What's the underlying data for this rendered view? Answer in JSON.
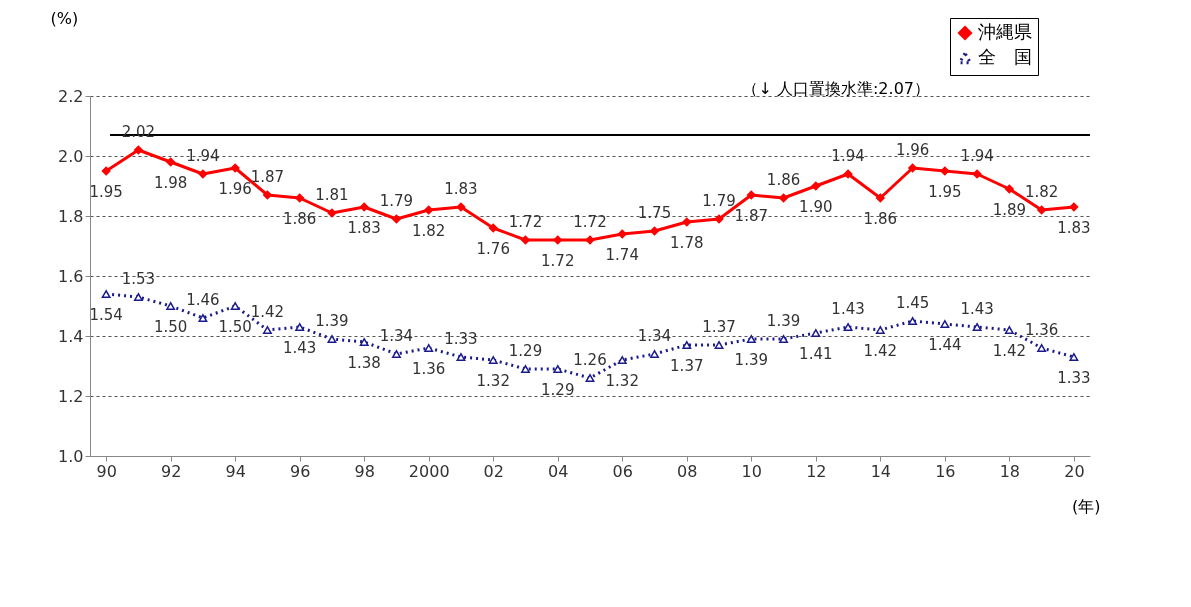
{
  "chart_data": {
    "type": "line",
    "ylabel": "(%)",
    "xlabel": "(年)",
    "x": [
      1990,
      1991,
      1992,
      1993,
      1994,
      1995,
      1996,
      1997,
      1998,
      1999,
      2000,
      2001,
      2002,
      2003,
      2004,
      2005,
      2006,
      2007,
      2008,
      2009,
      2010,
      2011,
      2012,
      2013,
      2014,
      2015,
      2016,
      2017,
      2018,
      2019,
      2020
    ],
    "series": [
      {
        "name": "沖縄県",
        "color": "#ff0000",
        "marker": "diamond",
        "line_style": "solid",
        "value_labels": [
          "1.95",
          "2.02",
          "1.98",
          "1.94",
          "1.96",
          "1.87",
          "1.86",
          "1.81",
          "1.83",
          "1.79",
          "1.82",
          "1.83",
          "1.76",
          "1.72",
          "1.72",
          "1.72",
          "1.74",
          "1.75",
          "1.78",
          "1.79",
          "1.87",
          "1.86",
          "1.90",
          "1.94",
          "1.86",
          "1.96",
          "1.95",
          "1.94",
          "1.89",
          "1.82",
          "1.83"
        ],
        "values": [
          1.95,
          2.02,
          1.98,
          1.94,
          1.96,
          1.87,
          1.86,
          1.81,
          1.83,
          1.79,
          1.82,
          1.83,
          1.76,
          1.72,
          1.72,
          1.72,
          1.74,
          1.75,
          1.78,
          1.79,
          1.87,
          1.86,
          1.9,
          1.94,
          1.86,
          1.96,
          1.95,
          1.94,
          1.89,
          1.82,
          1.83
        ]
      },
      {
        "name": "全　国",
        "color": "#1a1a8c",
        "marker": "triangle",
        "line_style": "dotted",
        "value_labels": [
          "1.54",
          "1.53",
          "1.50",
          "1.46",
          "1.50",
          "1.42",
          "1.43",
          "1.39",
          "1.38",
          "1.34",
          "1.36",
          "1.33",
          "1.32",
          "1.29",
          "1.29",
          "1.26",
          "1.32",
          "1.34",
          "1.37",
          "1.37",
          "1.39",
          "1.39",
          "1.41",
          "1.43",
          "1.42",
          "1.45",
          "1.44",
          "1.43",
          "1.42",
          "1.36",
          "1.33"
        ],
        "values": [
          1.54,
          1.53,
          1.5,
          1.46,
          1.5,
          1.42,
          1.43,
          1.39,
          1.38,
          1.34,
          1.36,
          1.33,
          1.32,
          1.29,
          1.29,
          1.26,
          1.32,
          1.34,
          1.37,
          1.37,
          1.39,
          1.39,
          1.41,
          1.43,
          1.42,
          1.45,
          1.44,
          1.43,
          1.42,
          1.36,
          1.33
        ]
      }
    ],
    "xlim": [
      1989.5,
      2020.5
    ],
    "xticks": [
      {
        "value": 1990,
        "label": "90"
      },
      {
        "value": 1992,
        "label": "92"
      },
      {
        "value": 1994,
        "label": "94"
      },
      {
        "value": 1996,
        "label": "96"
      },
      {
        "value": 1998,
        "label": "98"
      },
      {
        "value": 2000,
        "label": "2000"
      },
      {
        "value": 2002,
        "label": "02"
      },
      {
        "value": 2004,
        "label": "04"
      },
      {
        "value": 2006,
        "label": "06"
      },
      {
        "value": 2008,
        "label": "08"
      },
      {
        "value": 2010,
        "label": "10"
      },
      {
        "value": 2012,
        "label": "12"
      },
      {
        "value": 2014,
        "label": "14"
      },
      {
        "value": 2016,
        "label": "16"
      },
      {
        "value": 2018,
        "label": "18"
      },
      {
        "value": 2020,
        "label": "20"
      }
    ],
    "ylim": [
      1.0,
      2.2
    ],
    "yticks": [
      {
        "value": 1.0,
        "label": "1.0"
      },
      {
        "value": 1.2,
        "label": "1.2"
      },
      {
        "value": 1.4,
        "label": "1.4"
      },
      {
        "value": 1.6,
        "label": "1.6"
      },
      {
        "value": 1.8,
        "label": "1.8"
      },
      {
        "value": 2.0,
        "label": "2.0"
      },
      {
        "value": 2.2,
        "label": "2.2"
      }
    ],
    "ref_lines": [
      {
        "axis": "y",
        "value": 2.07,
        "label": "（↓ 人口置換水準:2.07）",
        "color": "#000000",
        "line_style": "solid"
      }
    ],
    "grid": "y",
    "legend": "top right"
  }
}
